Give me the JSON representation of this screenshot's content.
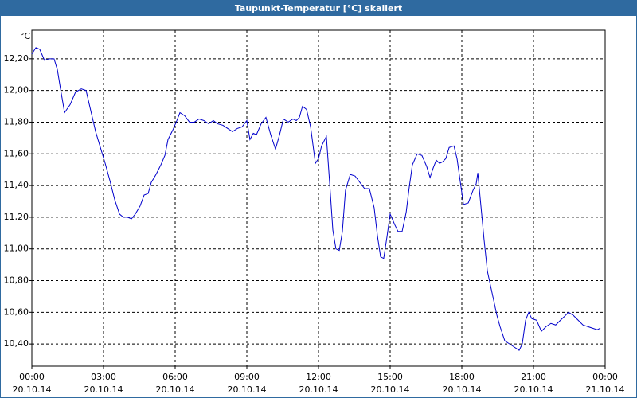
{
  "chart_data": {
    "type": "line",
    "title": "Taupunkt-Temperatur [°C] skaliert",
    "y_unit": "°C",
    "color": "#0000cc",
    "grid": true,
    "xlim": [
      0,
      24
    ],
    "xticks": [
      {
        "value": 0,
        "label": "00:00"
      },
      {
        "value": 3,
        "label": "03:00"
      },
      {
        "value": 6,
        "label": "06:00"
      },
      {
        "value": 9,
        "label": "09:00"
      },
      {
        "value": 12,
        "label": "12:00"
      },
      {
        "value": 15,
        "label": "15:00"
      },
      {
        "value": 18,
        "label": "18:00"
      },
      {
        "value": 21,
        "label": "21:00"
      },
      {
        "value": 24,
        "label": "00:00"
      }
    ],
    "xtick_dates": [
      "20.10.14",
      "20.10.14",
      "20.10.14",
      "20.10.14",
      "20.10.14",
      "20.10.14",
      "20.10.14",
      "20.10.14",
      "21.10.14"
    ],
    "ylim": [
      10.26,
      12.38
    ],
    "yticks": [
      {
        "value": 10.4,
        "label": "10,40"
      },
      {
        "value": 10.6,
        "label": "10,60"
      },
      {
        "value": 10.8,
        "label": "10,80"
      },
      {
        "value": 11.0,
        "label": "11,00"
      },
      {
        "value": 11.2,
        "label": "11,20"
      },
      {
        "value": 11.4,
        "label": "11,40"
      },
      {
        "value": 11.6,
        "label": "11,60"
      },
      {
        "value": 11.8,
        "label": "11,80"
      },
      {
        "value": 12.0,
        "label": "12,00"
      },
      {
        "value": 12.2,
        "label": "12,20"
      }
    ],
    "x": [
      0,
      0.17,
      0.33,
      0.53,
      0.73,
      0.93,
      1.07,
      1.2,
      1.37,
      1.6,
      1.83,
      2.07,
      2.27,
      2.47,
      2.67,
      2.87,
      3.07,
      3.27,
      3.47,
      3.67,
      3.83,
      4.0,
      4.17,
      4.33,
      4.53,
      4.7,
      4.87,
      5.0,
      5.2,
      5.4,
      5.57,
      5.7,
      5.9,
      6.07,
      6.2,
      6.4,
      6.6,
      6.8,
      7.0,
      7.2,
      7.4,
      7.6,
      7.77,
      8.0,
      8.2,
      8.4,
      8.6,
      8.8,
      9.0,
      9.13,
      9.27,
      9.4,
      9.6,
      9.8,
      10.0,
      10.2,
      10.37,
      10.53,
      10.73,
      10.93,
      11.07,
      11.2,
      11.33,
      11.5,
      11.67,
      11.87,
      12.0,
      12.13,
      12.33,
      12.47,
      12.6,
      12.73,
      12.87,
      13.0,
      13.13,
      13.33,
      13.53,
      13.73,
      13.93,
      14.13,
      14.33,
      14.47,
      14.6,
      14.73,
      14.87,
      15.0,
      15.2,
      15.33,
      15.5,
      15.67,
      15.8,
      15.93,
      16.13,
      16.33,
      16.53,
      16.67,
      16.8,
      16.93,
      17.07,
      17.2,
      17.33,
      17.47,
      17.67,
      17.8,
      17.93,
      18.07,
      18.27,
      18.47,
      18.6,
      18.67,
      18.8,
      18.93,
      19.07,
      19.27,
      19.47,
      19.6,
      19.8,
      20.0,
      20.2,
      20.4,
      20.53,
      20.67,
      20.8,
      20.93,
      21.13,
      21.33,
      21.53,
      21.73,
      21.93,
      22.13,
      22.27,
      22.47,
      22.67,
      22.87,
      23.07,
      23.27,
      23.47,
      23.67,
      23.8
    ],
    "values": [
      12.23,
      12.27,
      12.26,
      12.19,
      12.2,
      12.2,
      12.13,
      12.01,
      11.86,
      11.91,
      11.99,
      12.01,
      12.0,
      11.87,
      11.74,
      11.64,
      11.54,
      11.43,
      11.31,
      11.22,
      11.2,
      11.2,
      11.19,
      11.22,
      11.27,
      11.34,
      11.35,
      11.42,
      11.47,
      11.53,
      11.59,
      11.69,
      11.75,
      11.81,
      11.86,
      11.84,
      11.8,
      11.8,
      11.82,
      11.81,
      11.79,
      11.81,
      11.79,
      11.78,
      11.76,
      11.74,
      11.76,
      11.77,
      11.81,
      11.69,
      11.73,
      11.72,
      11.79,
      11.83,
      11.72,
      11.63,
      11.72,
      11.82,
      11.8,
      11.82,
      11.81,
      11.83,
      11.9,
      11.88,
      11.77,
      11.54,
      11.57,
      11.65,
      11.71,
      11.41,
      11.12,
      11.0,
      10.99,
      11.11,
      11.37,
      11.47,
      11.46,
      11.42,
      11.38,
      11.38,
      11.26,
      11.08,
      10.95,
      10.94,
      11.08,
      11.22,
      11.15,
      11.11,
      11.11,
      11.23,
      11.39,
      11.53,
      11.6,
      11.59,
      11.52,
      11.45,
      11.51,
      11.56,
      11.54,
      11.55,
      11.57,
      11.64,
      11.65,
      11.57,
      11.43,
      11.28,
      11.29,
      11.37,
      11.41,
      11.48,
      11.27,
      11.06,
      10.86,
      10.72,
      10.58,
      10.51,
      10.42,
      10.4,
      10.38,
      10.36,
      10.4,
      10.55,
      10.6,
      10.56,
      10.55,
      10.48,
      10.51,
      10.53,
      10.52,
      10.55,
      10.57,
      10.6,
      10.58,
      10.55,
      10.52,
      10.51,
      10.5,
      10.49,
      10.5
    ]
  }
}
